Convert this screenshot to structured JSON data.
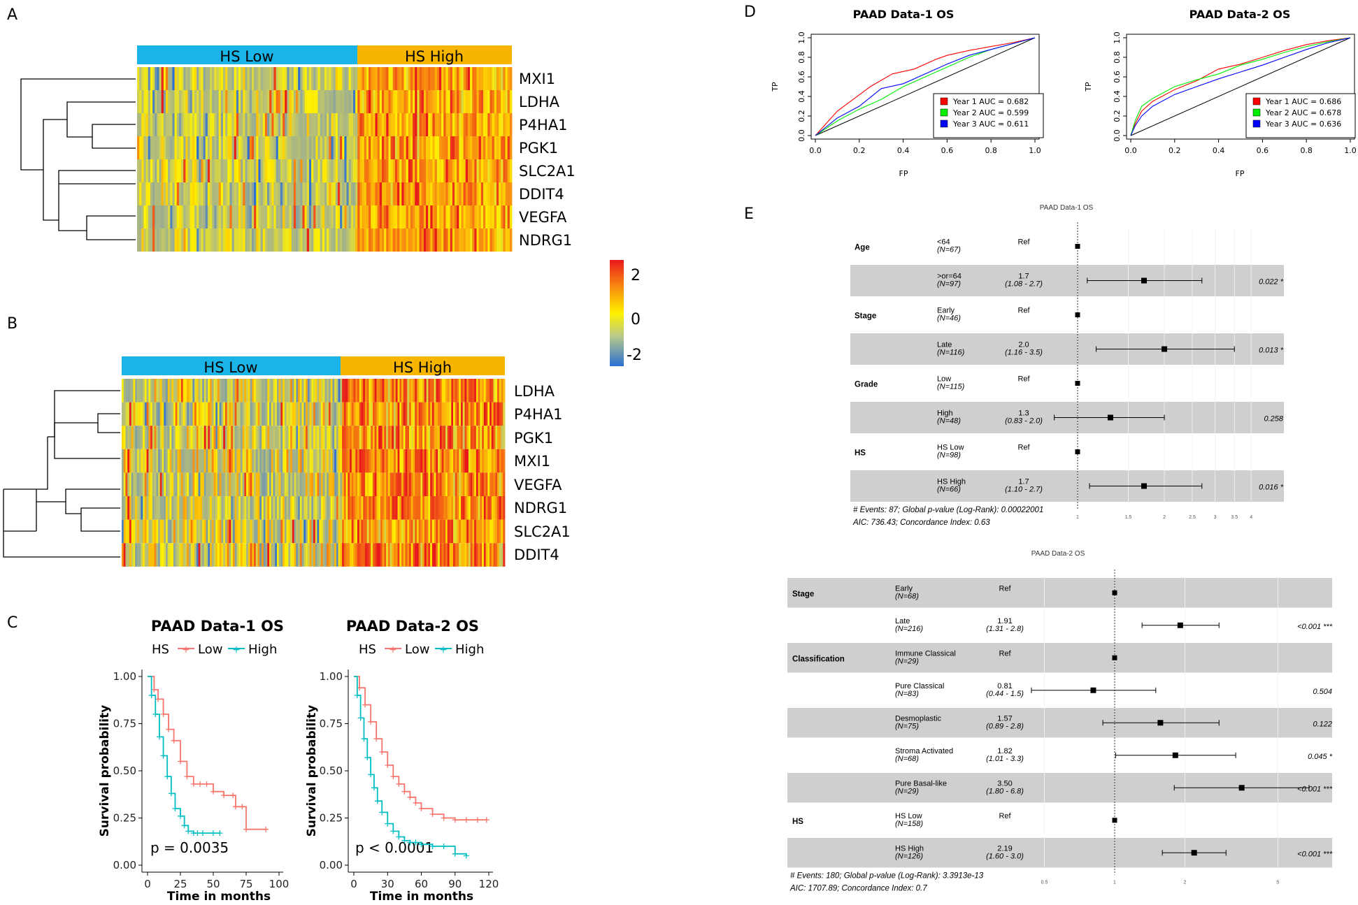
{
  "panels": {
    "A": "A",
    "B": "B",
    "C": "C",
    "D": "D",
    "E": "E"
  },
  "colorbar": {
    "ticks": [
      "2",
      "0",
      "-2"
    ]
  },
  "heatmap_a": {
    "groups": [
      {
        "label": "HS Low",
        "color": "#1ab4e8"
      },
      {
        "label": "HS High",
        "color": "#f7b500"
      }
    ],
    "genes": [
      "MXI1",
      "LDHA",
      "P4HA1",
      "PGK1",
      "SLC2A1",
      "DDIT4",
      "VEGFA",
      "NDRG1"
    ]
  },
  "heatmap_b": {
    "groups": [
      {
        "label": "HS Low",
        "color": "#1ab4e8"
      },
      {
        "label": "HS High",
        "color": "#f7b500"
      }
    ],
    "genes": [
      "LDHA",
      "P4HA1",
      "PGK1",
      "MXI1",
      "VEGFA",
      "NDRG1",
      "SLC2A1",
      "DDIT4"
    ]
  },
  "chart_data": [
    {
      "type": "line",
      "id": "km1",
      "title": "PAAD Data-1 OS",
      "xlabel": "Time in months",
      "ylabel": "Survival probability",
      "legend": {
        "title": "HS",
        "items": [
          {
            "label": "Low",
            "color": "#f8766d"
          },
          {
            "label": "High",
            "color": "#00bfc4"
          }
        ]
      },
      "annotation": "p = 0.0035",
      "xlim": [
        0,
        100
      ],
      "ylim": [
        0,
        1
      ],
      "xticks": [
        "0",
        "25",
        "50",
        "75",
        "100"
      ],
      "yticks": [
        "0.00",
        "0.25",
        "0.50",
        "0.75",
        "1.00"
      ],
      "series": [
        {
          "name": "Low",
          "color": "#f8766d",
          "x": [
            0,
            5,
            8,
            12,
            16,
            20,
            25,
            30,
            35,
            40,
            45,
            50,
            58,
            65,
            67,
            72,
            75,
            90
          ],
          "y": [
            1,
            0.93,
            0.88,
            0.8,
            0.72,
            0.66,
            0.55,
            0.47,
            0.43,
            0.43,
            0.43,
            0.39,
            0.37,
            0.37,
            0.31,
            0.31,
            0.19,
            0.19
          ]
        },
        {
          "name": "High",
          "color": "#00bfc4",
          "x": [
            0,
            3,
            6,
            9,
            12,
            15,
            18,
            21,
            25,
            28,
            31,
            35,
            38,
            42,
            50,
            55
          ],
          "y": [
            1,
            0.9,
            0.8,
            0.68,
            0.58,
            0.47,
            0.38,
            0.3,
            0.26,
            0.21,
            0.18,
            0.17,
            0.17,
            0.17,
            0.17,
            0.17
          ]
        }
      ]
    },
    {
      "type": "line",
      "id": "km2",
      "title": "PAAD Data-2 OS",
      "xlabel": "Time in months",
      "ylabel": "Survival probability",
      "legend": {
        "title": "HS",
        "items": [
          {
            "label": "Low",
            "color": "#f8766d"
          },
          {
            "label": "High",
            "color": "#00bfc4"
          }
        ]
      },
      "annotation": "p < 0.0001",
      "xlim": [
        0,
        120
      ],
      "ylim": [
        0,
        1
      ],
      "xticks": [
        "0",
        "30",
        "60",
        "90",
        "120"
      ],
      "yticks": [
        "0.00",
        "0.25",
        "0.50",
        "0.75",
        "1.00"
      ],
      "series": [
        {
          "name": "Low",
          "color": "#f8766d",
          "x": [
            0,
            5,
            10,
            15,
            20,
            25,
            30,
            35,
            40,
            45,
            50,
            55,
            60,
            70,
            80,
            90,
            100,
            110,
            118
          ],
          "y": [
            1,
            0.94,
            0.85,
            0.76,
            0.67,
            0.6,
            0.53,
            0.47,
            0.43,
            0.39,
            0.36,
            0.33,
            0.3,
            0.27,
            0.25,
            0.24,
            0.24,
            0.24,
            0.24
          ]
        },
        {
          "name": "High",
          "color": "#00bfc4",
          "x": [
            0,
            3,
            6,
            9,
            12,
            15,
            18,
            21,
            25,
            30,
            35,
            40,
            45,
            50,
            55,
            60,
            70,
            80,
            90,
            100
          ],
          "y": [
            1,
            0.9,
            0.78,
            0.67,
            0.57,
            0.48,
            0.41,
            0.34,
            0.28,
            0.22,
            0.18,
            0.15,
            0.13,
            0.12,
            0.12,
            0.11,
            0.1,
            0.1,
            0.06,
            0.05
          ]
        }
      ]
    },
    {
      "type": "line",
      "id": "roc1",
      "title": "PAAD Data-1 OS",
      "xlabel": "FP",
      "ylabel": "TP",
      "xticks": [
        "0.0",
        "0.2",
        "0.4",
        "0.6",
        "0.8",
        "1.0"
      ],
      "yticks": [
        "0.0",
        "0.2",
        "0.4",
        "0.6",
        "0.8",
        "1.0"
      ],
      "xlim": [
        0,
        1
      ],
      "ylim": [
        0,
        1
      ],
      "series": [
        {
          "name": "Year 1 AUC = 0.682",
          "color": "#ff0000",
          "x": [
            0,
            0.1,
            0.25,
            0.35,
            0.45,
            0.55,
            0.6,
            0.7,
            0.8,
            0.9,
            1
          ],
          "y": [
            0,
            0.25,
            0.5,
            0.63,
            0.68,
            0.78,
            0.82,
            0.87,
            0.91,
            0.95,
            1
          ]
        },
        {
          "name": "Year 2 AUC = 0.599",
          "color": "#00ee00",
          "x": [
            0,
            0.1,
            0.2,
            0.3,
            0.4,
            0.5,
            0.6,
            0.7,
            0.8,
            0.9,
            1
          ],
          "y": [
            0,
            0.15,
            0.27,
            0.37,
            0.5,
            0.6,
            0.7,
            0.8,
            0.88,
            0.94,
            1
          ]
        },
        {
          "name": "Year 3 AUC = 0.611",
          "color": "#0000ff",
          "x": [
            0,
            0.1,
            0.2,
            0.3,
            0.4,
            0.5,
            0.6,
            0.7,
            0.8,
            0.9,
            1
          ],
          "y": [
            0,
            0.18,
            0.3,
            0.48,
            0.53,
            0.63,
            0.73,
            0.82,
            0.88,
            0.94,
            1
          ]
        }
      ]
    },
    {
      "type": "line",
      "id": "roc2",
      "title": "PAAD Data-2 OS",
      "xlabel": "FP",
      "ylabel": "TP",
      "xticks": [
        "0.0",
        "0.2",
        "0.4",
        "0.6",
        "0.8",
        "1.0"
      ],
      "yticks": [
        "0.0",
        "0.2",
        "0.4",
        "0.6",
        "0.8",
        "1.0"
      ],
      "xlim": [
        0,
        1
      ],
      "ylim": [
        0,
        1
      ],
      "series": [
        {
          "name": "Year 1 AUC = 0.686",
          "color": "#ff0000",
          "x": [
            0,
            0.02,
            0.05,
            0.1,
            0.2,
            0.3,
            0.4,
            0.5,
            0.6,
            0.7,
            0.8,
            0.9,
            1
          ],
          "y": [
            0,
            0.12,
            0.25,
            0.35,
            0.47,
            0.56,
            0.68,
            0.73,
            0.8,
            0.87,
            0.93,
            0.97,
            1
          ]
        },
        {
          "name": "Year 2 AUC = 0.678",
          "color": "#00ee00",
          "x": [
            0,
            0.02,
            0.05,
            0.1,
            0.2,
            0.3,
            0.4,
            0.5,
            0.6,
            0.7,
            0.8,
            0.9,
            1
          ],
          "y": [
            0,
            0.15,
            0.3,
            0.38,
            0.5,
            0.57,
            0.63,
            0.72,
            0.78,
            0.85,
            0.91,
            0.96,
            1
          ]
        },
        {
          "name": "Year 3 AUC = 0.636",
          "color": "#0000ff",
          "x": [
            0,
            0.02,
            0.05,
            0.1,
            0.2,
            0.3,
            0.4,
            0.5,
            0.6,
            0.7,
            0.8,
            0.9,
            1
          ],
          "y": [
            0,
            0.1,
            0.2,
            0.3,
            0.42,
            0.5,
            0.58,
            0.65,
            0.72,
            0.8,
            0.88,
            0.95,
            1
          ]
        }
      ]
    },
    {
      "type": "forest",
      "id": "forest1",
      "title": "PAAD Data-1 OS",
      "xticks": [
        "1",
        "1.5",
        "2",
        "2.5",
        "3",
        "3.5",
        "4"
      ],
      "rows": [
        {
          "group": "Age",
          "level": "<64",
          "n": "(N=67)",
          "hr": "Ref",
          "ci": "",
          "p": "",
          "est": null,
          "shaded": false
        },
        {
          "group": "",
          "level": ">or=64",
          "n": "(N=97)",
          "hr": "1.7",
          "ci": "(1.08 - 2.7)",
          "p": "0.022 *",
          "est": 1.7,
          "lo": 1.08,
          "hi": 2.7,
          "shaded": true
        },
        {
          "group": "Stage",
          "level": "Early",
          "n": "(N=46)",
          "hr": "Ref",
          "ci": "",
          "p": "",
          "est": null,
          "shaded": false
        },
        {
          "group": "",
          "level": "Late",
          "n": "(N=116)",
          "hr": "2.0",
          "ci": "(1.16 - 3.5)",
          "p": "0.013 *",
          "est": 2.0,
          "lo": 1.16,
          "hi": 3.5,
          "shaded": true
        },
        {
          "group": "Grade",
          "level": "Low",
          "n": "(N=115)",
          "hr": "Ref",
          "ci": "",
          "p": "",
          "est": null,
          "shaded": false
        },
        {
          "group": "",
          "level": "High",
          "n": "(N=48)",
          "hr": "1.3",
          "ci": "(0.83 - 2.0)",
          "p": "0.258",
          "est": 1.3,
          "lo": 0.83,
          "hi": 2.0,
          "shaded": true
        },
        {
          "group": "HS",
          "level": "HS Low",
          "n": "(N=98)",
          "hr": "Ref",
          "ci": "",
          "p": "",
          "est": null,
          "shaded": false
        },
        {
          "group": "",
          "level": "HS High",
          "n": "(N=66)",
          "hr": "1.7",
          "ci": "(1.10 - 2.7)",
          "p": "0.016 *",
          "est": 1.7,
          "lo": 1.1,
          "hi": 2.7,
          "shaded": true
        }
      ],
      "footer": [
        "# Events: 87; Global p-value (Log-Rank): 0.00022001",
        "AIC: 736.43; Concordance Index: 0.63"
      ]
    },
    {
      "type": "forest",
      "id": "forest2",
      "title": "PAAD Data-2 OS",
      "xticks": [
        "0.5",
        "1",
        "2",
        "5"
      ],
      "rows": [
        {
          "group": "Stage",
          "level": "Early",
          "n": "(N=68)",
          "hr": "Ref",
          "ci": "",
          "p": "",
          "est": null,
          "shaded": true
        },
        {
          "group": "",
          "level": "Late",
          "n": "(N=216)",
          "hr": "1.91",
          "ci": "(1.31 - 2.8)",
          "p": "<0.001 ***",
          "est": 1.91,
          "lo": 1.31,
          "hi": 2.8,
          "shaded": false
        },
        {
          "group": "Classification",
          "level": "Immune Classical",
          "n": "(N=29)",
          "hr": "Ref",
          "ci": "",
          "p": "",
          "est": null,
          "shaded": true
        },
        {
          "group": "",
          "level": "Pure Classical",
          "n": "(N=83)",
          "hr": "0.81",
          "ci": "(0.44 - 1.5)",
          "p": "0.504",
          "est": 0.81,
          "lo": 0.44,
          "hi": 1.5,
          "shaded": false
        },
        {
          "group": "",
          "level": "Desmoplastic",
          "n": "(N=75)",
          "hr": "1.57",
          "ci": "(0.89 - 2.8)",
          "p": "0.122",
          "est": 1.57,
          "lo": 0.89,
          "hi": 2.8,
          "shaded": true
        },
        {
          "group": "",
          "level": "Stroma Activated",
          "n": "(N=68)",
          "hr": "1.82",
          "ci": "(1.01 - 3.3)",
          "p": "0.045 *",
          "est": 1.82,
          "lo": 1.01,
          "hi": 3.3,
          "shaded": false
        },
        {
          "group": "",
          "level": "Pure Basal-like",
          "n": "(N=29)",
          "hr": "3.50",
          "ci": "(1.80 - 6.8)",
          "p": "<0.001 ***",
          "est": 3.5,
          "lo": 1.8,
          "hi": 6.8,
          "shaded": true
        },
        {
          "group": "HS",
          "level": "HS Low",
          "n": "(N=158)",
          "hr": "Ref",
          "ci": "",
          "p": "",
          "est": null,
          "shaded": false
        },
        {
          "group": "",
          "level": "HS High",
          "n": "(N=126)",
          "hr": "2.19",
          "ci": "(1.60 - 3.0)",
          "p": "<0.001 ***",
          "est": 2.19,
          "lo": 1.6,
          "hi": 3.0,
          "shaded": true
        }
      ],
      "footer": [
        "# Events: 180; Global p-value (Log-Rank): 3.3913e-13",
        "AIC: 1707.89; Concordance Index: 0.7"
      ]
    }
  ]
}
